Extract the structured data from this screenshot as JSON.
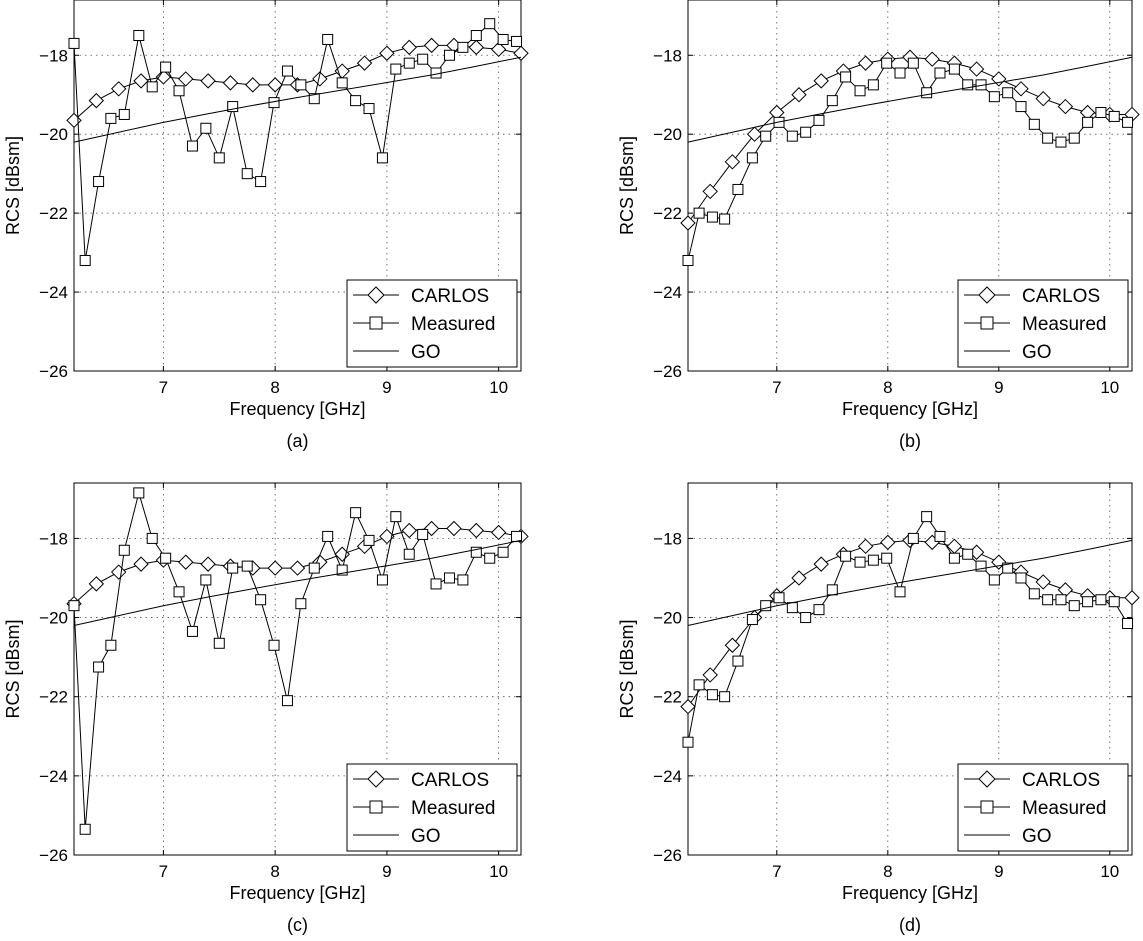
{
  "chart_data": [
    {
      "type": "line",
      "caption": "(a)",
      "xlabel": "Frequency [GHz]",
      "ylabel": "RCS [dBsm]",
      "xlim": [
        6.2,
        10.2
      ],
      "ylim": [
        -26,
        -16.6
      ],
      "xticks": [
        7,
        8,
        9,
        10
      ],
      "xtick_labels": [
        "7",
        "8",
        "9",
        "10"
      ],
      "yticks": [
        -26,
        -24,
        -22,
        -20,
        -18
      ],
      "ytick_labels": [
        "−26",
        "−24",
        "−22",
        "−20",
        "−18"
      ],
      "grid": true,
      "legend_position": "bottom-right",
      "series": [
        {
          "name": "CARLOS",
          "marker": "diamond",
          "x": [
            6.2,
            6.4,
            6.6,
            6.8,
            7.0,
            7.2,
            7.4,
            7.6,
            7.8,
            8.0,
            8.2,
            8.4,
            8.6,
            8.8,
            9.0,
            9.2,
            9.4,
            9.6,
            9.8,
            10.0,
            10.2
          ],
          "y": [
            -19.65,
            -19.15,
            -18.85,
            -18.65,
            -18.55,
            -18.6,
            -18.65,
            -18.7,
            -18.75,
            -18.75,
            -18.75,
            -18.6,
            -18.4,
            -18.2,
            -17.95,
            -17.8,
            -17.75,
            -17.75,
            -17.8,
            -17.85,
            -17.95
          ]
        },
        {
          "name": "Measured",
          "marker": "square",
          "x": [
            6.2,
            6.3,
            6.42,
            6.53,
            6.65,
            6.78,
            6.9,
            7.02,
            7.14,
            7.26,
            7.38,
            7.5,
            7.62,
            7.75,
            7.87,
            7.99,
            8.11,
            8.23,
            8.35,
            8.47,
            8.6,
            8.72,
            8.84,
            8.96,
            9.08,
            9.2,
            9.32,
            9.44,
            9.56,
            9.68,
            9.8,
            9.92,
            10.04,
            10.16
          ],
          "y": [
            -17.7,
            -23.2,
            -21.2,
            -19.6,
            -19.5,
            -17.5,
            -18.8,
            -18.3,
            -18.9,
            -20.3,
            -19.85,
            -20.6,
            -19.3,
            -21.0,
            -21.2,
            -19.2,
            -18.4,
            -18.75,
            -19.1,
            -17.6,
            -18.7,
            -19.15,
            -19.35,
            -20.6,
            -18.35,
            -18.2,
            -18.1,
            -18.45,
            -18.0,
            -17.8,
            -17.5,
            -17.2,
            -17.6,
            -17.65
          ]
        },
        {
          "name": "GO",
          "marker": "none",
          "x": [
            6.2,
            6.6,
            7.0,
            7.4,
            7.8,
            8.2,
            8.6,
            9.0,
            9.4,
            9.8,
            10.2
          ],
          "y": [
            -20.2,
            -19.95,
            -19.7,
            -19.48,
            -19.27,
            -19.07,
            -18.88,
            -18.69,
            -18.5,
            -18.28,
            -18.05
          ]
        }
      ]
    },
    {
      "type": "line",
      "caption": "(b)",
      "xlabel": "Frequency [GHz]",
      "ylabel": "RCS [dBsm]",
      "xlim": [
        6.2,
        10.2
      ],
      "ylim": [
        -26,
        -16.6
      ],
      "xticks": [
        7,
        8,
        9,
        10
      ],
      "xtick_labels": [
        "7",
        "8",
        "9",
        "10"
      ],
      "yticks": [
        -26,
        -24,
        -22,
        -20,
        -18
      ],
      "ytick_labels": [
        "−26",
        "−24",
        "−22",
        "−20",
        "−18"
      ],
      "grid": true,
      "legend_position": "bottom-right",
      "series": [
        {
          "name": "CARLOS",
          "marker": "diamond",
          "x": [
            6.2,
            6.4,
            6.6,
            6.8,
            7.0,
            7.2,
            7.4,
            7.6,
            7.8,
            8.0,
            8.2,
            8.4,
            8.6,
            8.8,
            9.0,
            9.2,
            9.4,
            9.6,
            9.8,
            10.0,
            10.2
          ],
          "y": [
            -22.25,
            -21.45,
            -20.7,
            -20.0,
            -19.45,
            -19.0,
            -18.65,
            -18.4,
            -18.2,
            -18.1,
            -18.05,
            -18.1,
            -18.2,
            -18.35,
            -18.6,
            -18.85,
            -19.1,
            -19.3,
            -19.45,
            -19.5,
            -19.5
          ]
        },
        {
          "name": "Measured",
          "marker": "square",
          "x": [
            6.2,
            6.3,
            6.42,
            6.53,
            6.65,
            6.78,
            6.9,
            7.02,
            7.14,
            7.26,
            7.38,
            7.5,
            7.62,
            7.75,
            7.87,
            7.99,
            8.11,
            8.23,
            8.35,
            8.47,
            8.6,
            8.72,
            8.84,
            8.96,
            9.08,
            9.2,
            9.32,
            9.44,
            9.56,
            9.68,
            9.8,
            9.92,
            10.04,
            10.16
          ],
          "y": [
            -23.2,
            -22.0,
            -22.1,
            -22.15,
            -21.4,
            -20.6,
            -20.05,
            -19.7,
            -20.05,
            -19.95,
            -19.65,
            -19.15,
            -18.55,
            -18.9,
            -18.75,
            -18.2,
            -18.45,
            -18.2,
            -18.95,
            -18.45,
            -18.35,
            -18.75,
            -18.75,
            -19.05,
            -18.95,
            -19.3,
            -19.75,
            -20.1,
            -20.2,
            -20.1,
            -19.7,
            -19.45,
            -19.55,
            -19.7
          ]
        },
        {
          "name": "GO",
          "marker": "none",
          "x": [
            6.2,
            6.6,
            7.0,
            7.4,
            7.8,
            8.2,
            8.6,
            9.0,
            9.4,
            9.8,
            10.2
          ],
          "y": [
            -20.2,
            -19.95,
            -19.7,
            -19.48,
            -19.27,
            -19.07,
            -18.88,
            -18.69,
            -18.5,
            -18.28,
            -18.05
          ]
        }
      ]
    },
    {
      "type": "line",
      "caption": "(c)",
      "xlabel": "Frequency [GHz]",
      "ylabel": "RCS [dBsm]",
      "xlim": [
        6.2,
        10.2
      ],
      "ylim": [
        -26,
        -16.6
      ],
      "xticks": [
        7,
        8,
        9,
        10
      ],
      "xtick_labels": [
        "7",
        "8",
        "9",
        "10"
      ],
      "yticks": [
        -26,
        -24,
        -22,
        -20,
        -18
      ],
      "ytick_labels": [
        "−26",
        "−24",
        "−22",
        "−20",
        "−18"
      ],
      "grid": true,
      "legend_position": "bottom-right",
      "series": [
        {
          "name": "CARLOS",
          "marker": "diamond",
          "x": [
            6.2,
            6.4,
            6.6,
            6.8,
            7.0,
            7.2,
            7.4,
            7.6,
            7.8,
            8.0,
            8.2,
            8.4,
            8.6,
            8.8,
            9.0,
            9.2,
            9.4,
            9.6,
            9.8,
            10.0,
            10.2
          ],
          "y": [
            -19.65,
            -19.15,
            -18.85,
            -18.65,
            -18.55,
            -18.6,
            -18.65,
            -18.7,
            -18.75,
            -18.75,
            -18.75,
            -18.6,
            -18.4,
            -18.2,
            -17.95,
            -17.8,
            -17.75,
            -17.75,
            -17.8,
            -17.85,
            -17.95
          ]
        },
        {
          "name": "Measured",
          "marker": "square",
          "x": [
            6.2,
            6.3,
            6.42,
            6.53,
            6.65,
            6.78,
            6.9,
            7.02,
            7.14,
            7.26,
            7.38,
            7.5,
            7.62,
            7.75,
            7.87,
            7.99,
            8.11,
            8.23,
            8.35,
            8.47,
            8.6,
            8.72,
            8.84,
            8.96,
            9.08,
            9.2,
            9.32,
            9.44,
            9.56,
            9.68,
            9.8,
            9.92,
            10.04,
            10.16
          ],
          "y": [
            -19.7,
            -25.35,
            -21.25,
            -20.7,
            -18.3,
            -16.85,
            -18.0,
            -18.5,
            -19.35,
            -20.35,
            -19.05,
            -20.65,
            -18.75,
            -18.7,
            -19.55,
            -20.7,
            -22.1,
            -19.65,
            -18.75,
            -17.95,
            -18.8,
            -17.35,
            -18.05,
            -19.05,
            -17.45,
            -18.4,
            -17.9,
            -19.15,
            -19.0,
            -19.05,
            -18.35,
            -18.5,
            -18.35,
            -17.95
          ]
        },
        {
          "name": "GO",
          "marker": "none",
          "x": [
            6.2,
            6.6,
            7.0,
            7.4,
            7.8,
            8.2,
            8.6,
            9.0,
            9.4,
            9.8,
            10.2
          ],
          "y": [
            -20.2,
            -19.95,
            -19.7,
            -19.48,
            -19.27,
            -19.07,
            -18.88,
            -18.69,
            -18.5,
            -18.28,
            -18.05
          ]
        }
      ]
    },
    {
      "type": "line",
      "caption": "(d)",
      "xlabel": "Frequency [GHz]",
      "ylabel": "RCS [dBsm]",
      "xlim": [
        6.2,
        10.2
      ],
      "ylim": [
        -26,
        -16.6
      ],
      "xticks": [
        7,
        8,
        9,
        10
      ],
      "xtick_labels": [
        "7",
        "8",
        "9",
        "10"
      ],
      "yticks": [
        -26,
        -24,
        -22,
        -20,
        -18
      ],
      "ytick_labels": [
        "−26",
        "−24",
        "−22",
        "−20",
        "−18"
      ],
      "grid": true,
      "legend_position": "bottom-right",
      "series": [
        {
          "name": "CARLOS",
          "marker": "diamond",
          "x": [
            6.2,
            6.4,
            6.6,
            6.8,
            7.0,
            7.2,
            7.4,
            7.6,
            7.8,
            8.0,
            8.2,
            8.4,
            8.6,
            8.8,
            9.0,
            9.2,
            9.4,
            9.6,
            9.8,
            10.0,
            10.2
          ],
          "y": [
            -22.25,
            -21.45,
            -20.7,
            -20.0,
            -19.45,
            -19.0,
            -18.65,
            -18.4,
            -18.2,
            -18.1,
            -18.05,
            -18.1,
            -18.2,
            -18.35,
            -18.6,
            -18.85,
            -19.1,
            -19.3,
            -19.45,
            -19.5,
            -19.5
          ]
        },
        {
          "name": "Measured",
          "marker": "square",
          "x": [
            6.2,
            6.3,
            6.42,
            6.53,
            6.65,
            6.78,
            6.9,
            7.02,
            7.14,
            7.26,
            7.38,
            7.5,
            7.62,
            7.75,
            7.87,
            7.99,
            8.11,
            8.23,
            8.35,
            8.47,
            8.6,
            8.72,
            8.84,
            8.96,
            9.08,
            9.2,
            9.32,
            9.44,
            9.56,
            9.68,
            9.8,
            9.92,
            10.04,
            10.16
          ],
          "y": [
            -23.15,
            -21.7,
            -21.95,
            -22.0,
            -21.1,
            -20.05,
            -19.7,
            -19.5,
            -19.75,
            -20.0,
            -19.8,
            -19.3,
            -18.45,
            -18.6,
            -18.55,
            -18.5,
            -19.35,
            -18.0,
            -17.45,
            -17.95,
            -18.5,
            -18.4,
            -18.7,
            -19.05,
            -18.75,
            -19.0,
            -19.4,
            -19.55,
            -19.55,
            -19.7,
            -19.6,
            -19.55,
            -19.6,
            -20.15
          ]
        },
        {
          "name": "GO",
          "marker": "none",
          "x": [
            6.2,
            6.6,
            7.0,
            7.4,
            7.8,
            8.2,
            8.6,
            9.0,
            9.4,
            9.8,
            10.2
          ],
          "y": [
            -20.2,
            -19.95,
            -19.7,
            -19.48,
            -19.27,
            -19.07,
            -18.88,
            -18.69,
            -18.5,
            -18.28,
            -18.05
          ]
        }
      ]
    }
  ]
}
